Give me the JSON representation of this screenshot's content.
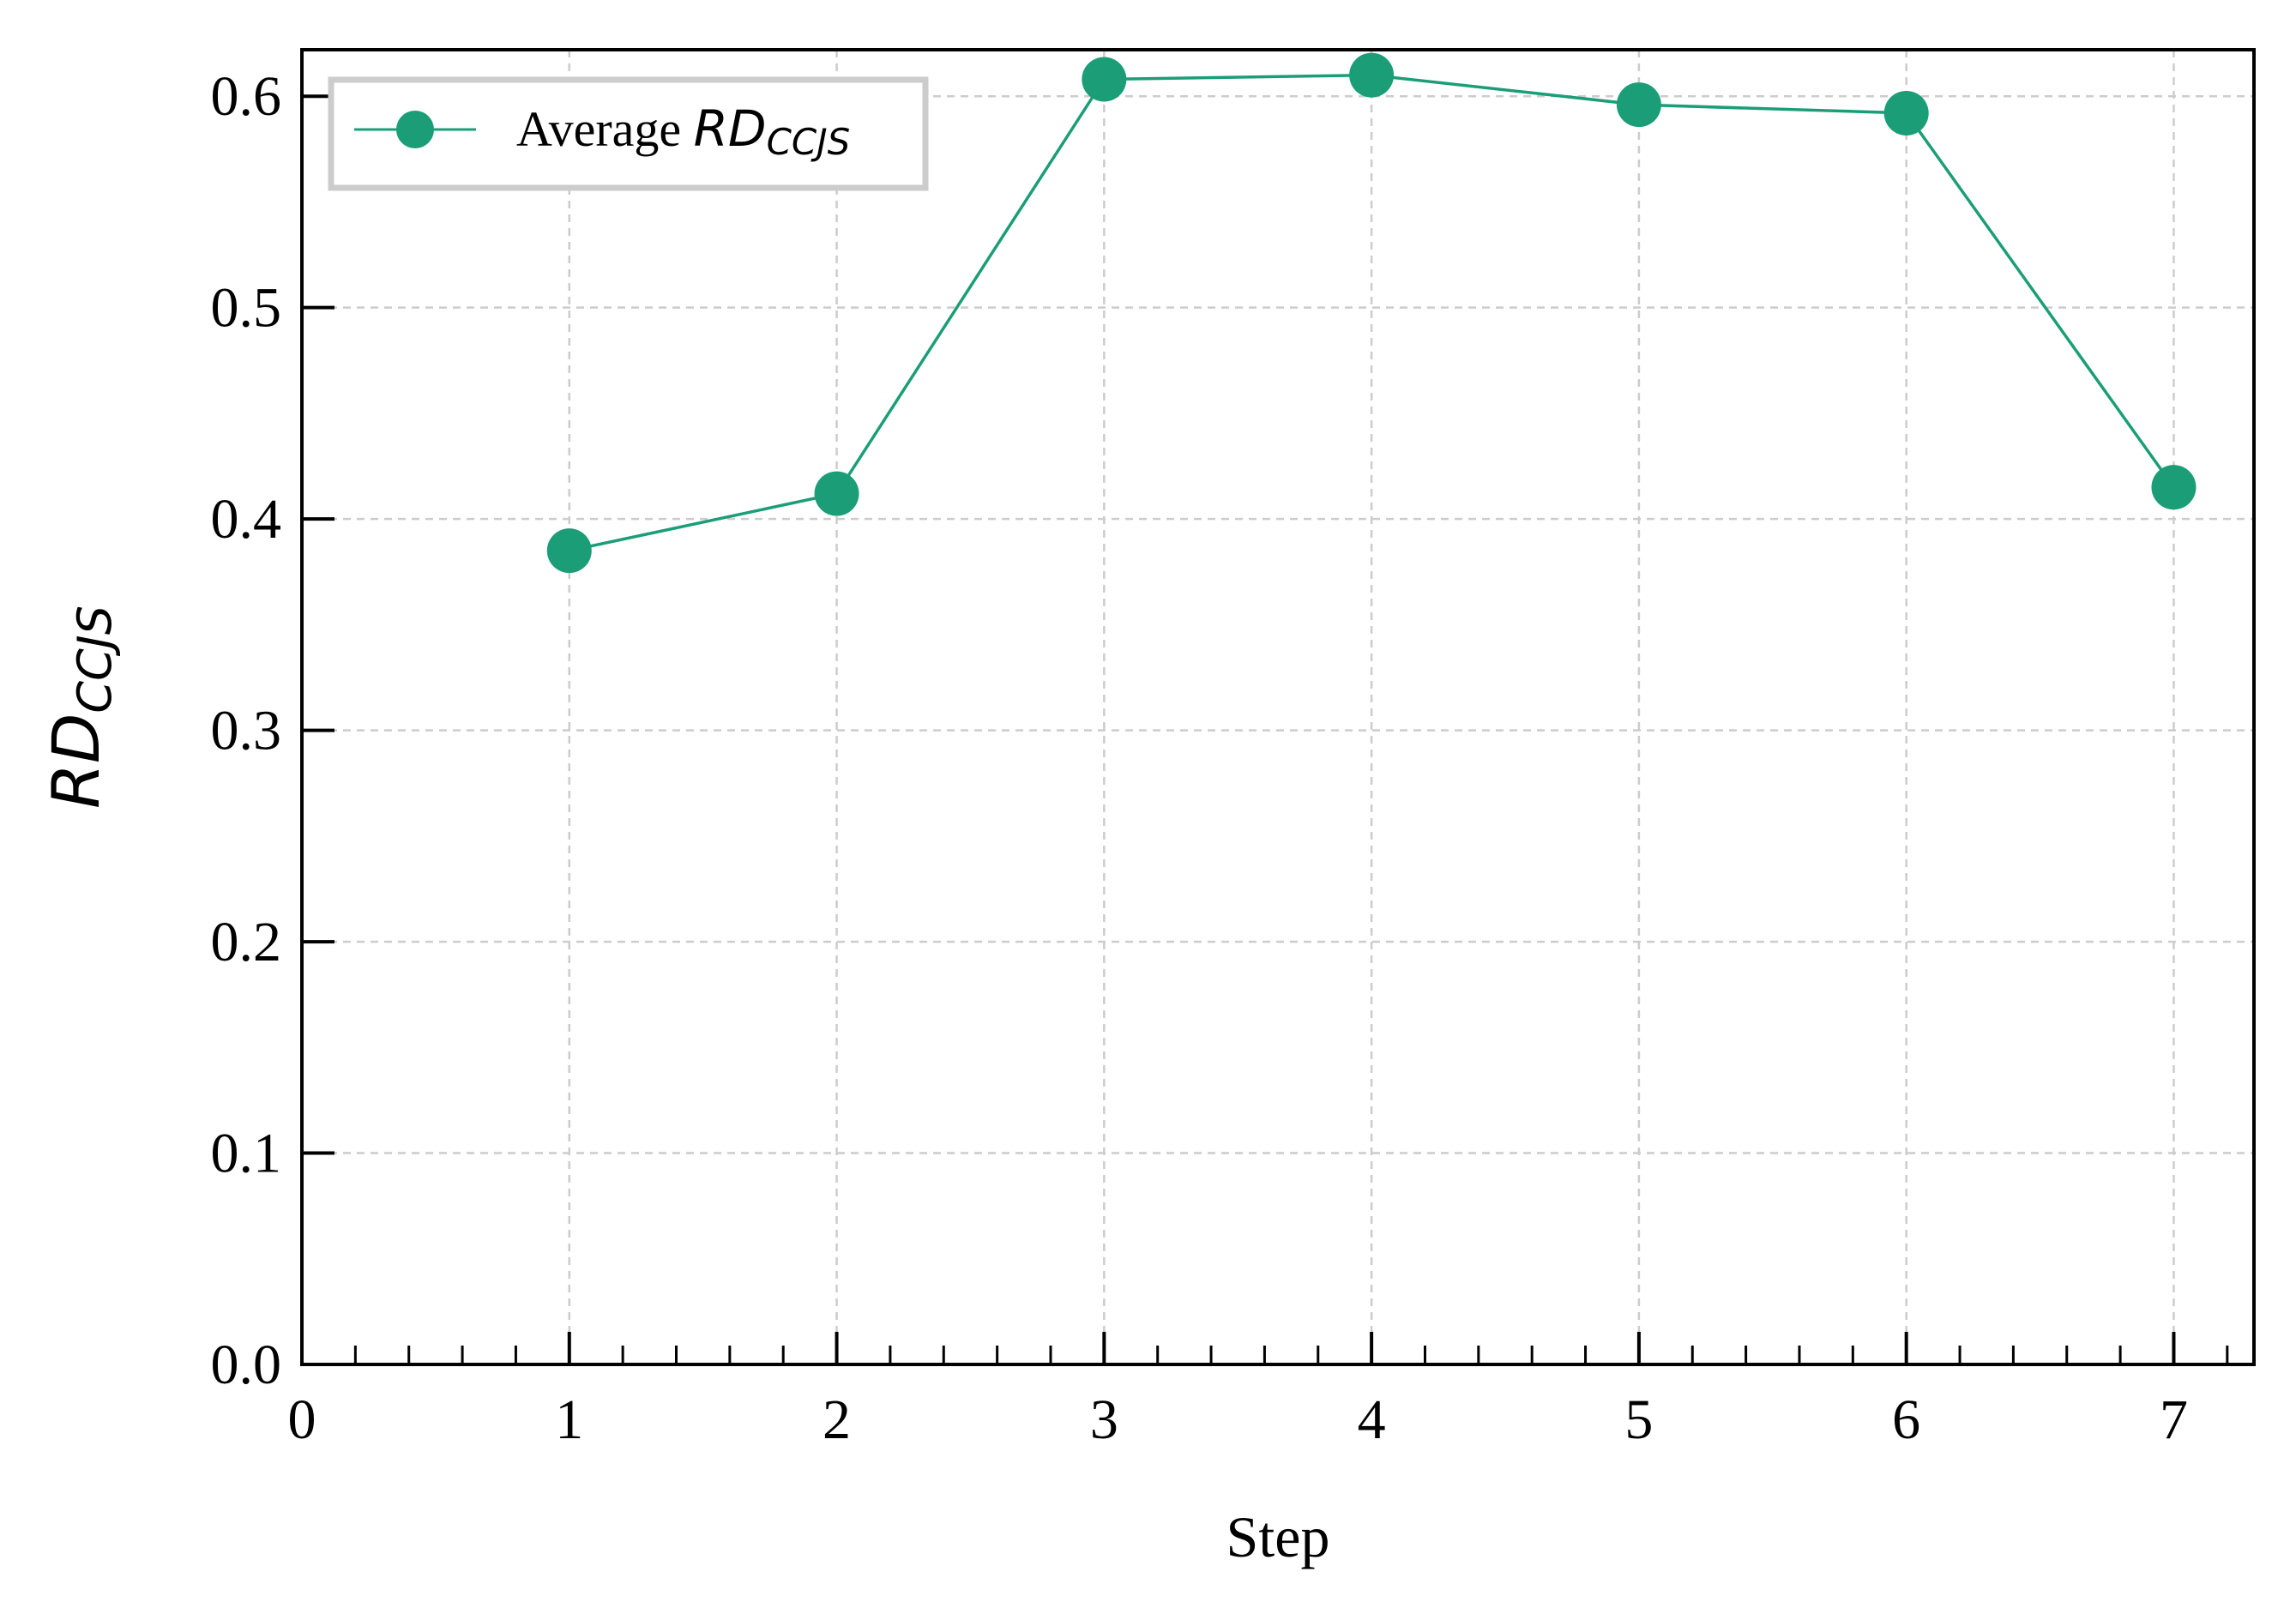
{
  "chart_data": {
    "type": "line",
    "x": [
      1,
      2,
      3,
      4,
      5,
      6,
      7
    ],
    "series": [
      {
        "name": "Average RD_CCJS",
        "name_prefix": "Average ",
        "name_main": "RD",
        "name_sub": "CCJS",
        "values": [
          0.385,
          0.412,
          0.608,
          0.61,
          0.596,
          0.592,
          0.415
        ],
        "color": "#1b9e77"
      }
    ],
    "xlabel": "Step",
    "ylabel_main": "RD",
    "ylabel_sub": "CCJS",
    "xlim": [
      0,
      7.3
    ],
    "ylim": [
      0,
      0.622
    ],
    "xticks": [
      0,
      1,
      2,
      3,
      4,
      5,
      6,
      7
    ],
    "xtick_labels": [
      "0",
      "1",
      "2",
      "3",
      "4",
      "5",
      "6",
      "7"
    ],
    "yticks": [
      0,
      0.1,
      0.2,
      0.3,
      0.4,
      0.5,
      0.6
    ],
    "ytick_labels": [
      "0.0",
      "0.1",
      "0.2",
      "0.3",
      "0.4",
      "0.5",
      "0.6"
    ],
    "grid": true,
    "legend_position": "top-left"
  }
}
